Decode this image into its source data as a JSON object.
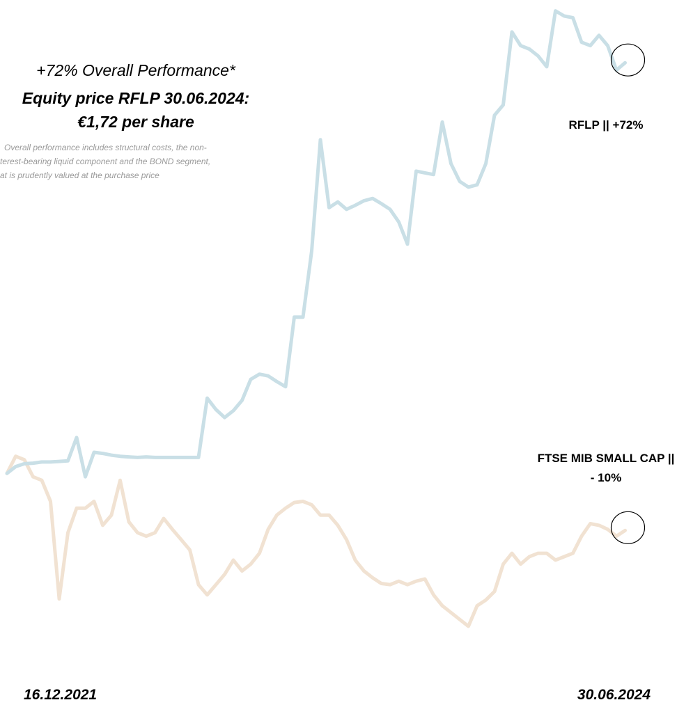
{
  "chart_data": {
    "type": "line",
    "annotations": [
      "+72% Overall Performance*",
      "Equity price RFLP 30.06.2024:",
      "€1,72 per share",
      "Overall performance includes structural costs, the non-",
      "terest-bearing liquid component and the BOND segment,",
      "at is prudently valued at the purchase price"
    ],
    "categories": [
      "16.12.2021",
      null,
      null,
      null,
      null,
      null,
      null,
      null,
      null,
      null,
      null,
      null,
      null,
      null,
      null,
      null,
      null,
      null,
      null,
      null,
      null,
      null,
      null,
      null,
      null,
      null,
      null,
      null,
      null,
      null,
      null,
      null,
      null,
      null,
      null,
      null,
      null,
      null,
      null,
      null,
      null,
      null,
      null,
      null,
      null,
      null,
      null,
      null,
      null,
      null,
      null,
      null,
      null,
      null,
      null,
      null,
      null,
      null,
      null,
      null,
      null,
      null,
      null,
      null,
      null,
      null,
      null,
      null,
      null,
      null,
      null,
      "30.06.2024"
    ],
    "ylim": [
      -39,
      83
    ],
    "series": [
      {
        "name": "RFLP || +72%",
        "color": "#c9dfe6",
        "values": [
          0,
          1.2,
          1.7,
          1.8,
          2.0,
          2.0,
          2.1,
          2.2,
          6.3,
          -0.6,
          3.7,
          3.5,
          3.2,
          3.0,
          2.9,
          2.8,
          2.9,
          2.8,
          2.8,
          2.8,
          2.8,
          2.8,
          2.8,
          13.2,
          11.2,
          9.8,
          11.0,
          12.8,
          16.5,
          17.4,
          17.1,
          16.1,
          15.2,
          27.4,
          27.4,
          39.0,
          58.5,
          46.6,
          47.6,
          46.3,
          47.0,
          47.8,
          48.2,
          47.3,
          46.3,
          44.1,
          40.2,
          53.0,
          52.7,
          52.4,
          61.6,
          54.3,
          51.2,
          50.2,
          50.6,
          54.3,
          62.8,
          64.6,
          77.4,
          75.0,
          74.4,
          73.2,
          71.3,
          81.1,
          80.2,
          79.9,
          75.6,
          75.0,
          76.8,
          75.0,
          70.7,
          72.0
        ]
      },
      {
        "name": "FTSE MIB  SMALL CAP || - 10%",
        "color": "#f1e2d2",
        "values": [
          0,
          3.0,
          2.4,
          -0.6,
          -1.2,
          -4.9,
          -22.0,
          -10.4,
          -6.1,
          -6.1,
          -4.9,
          -9.1,
          -7.3,
          -1.2,
          -8.5,
          -10.4,
          -11.0,
          -10.4,
          -7.9,
          -9.8,
          -11.6,
          -13.4,
          -19.5,
          -21.3,
          -19.5,
          -17.7,
          -15.2,
          -17.1,
          -15.9,
          -14.0,
          -9.8,
          -7.3,
          -6.1,
          -5.1,
          -4.9,
          -5.5,
          -7.3,
          -7.3,
          -9.1,
          -11.6,
          -15.2,
          -17.1,
          -18.3,
          -19.3,
          -19.5,
          -18.9,
          -19.5,
          -18.9,
          -18.5,
          -21.3,
          -23.2,
          -24.4,
          -25.6,
          -26.8,
          -23.2,
          -22.2,
          -20.7,
          -15.9,
          -14.0,
          -15.9,
          -14.6,
          -14.0,
          -14.0,
          -15.2,
          -14.6,
          -14.0,
          -11.0,
          -8.8,
          -9.1,
          -9.8,
          -11.0,
          -10.0
        ]
      }
    ]
  }
}
